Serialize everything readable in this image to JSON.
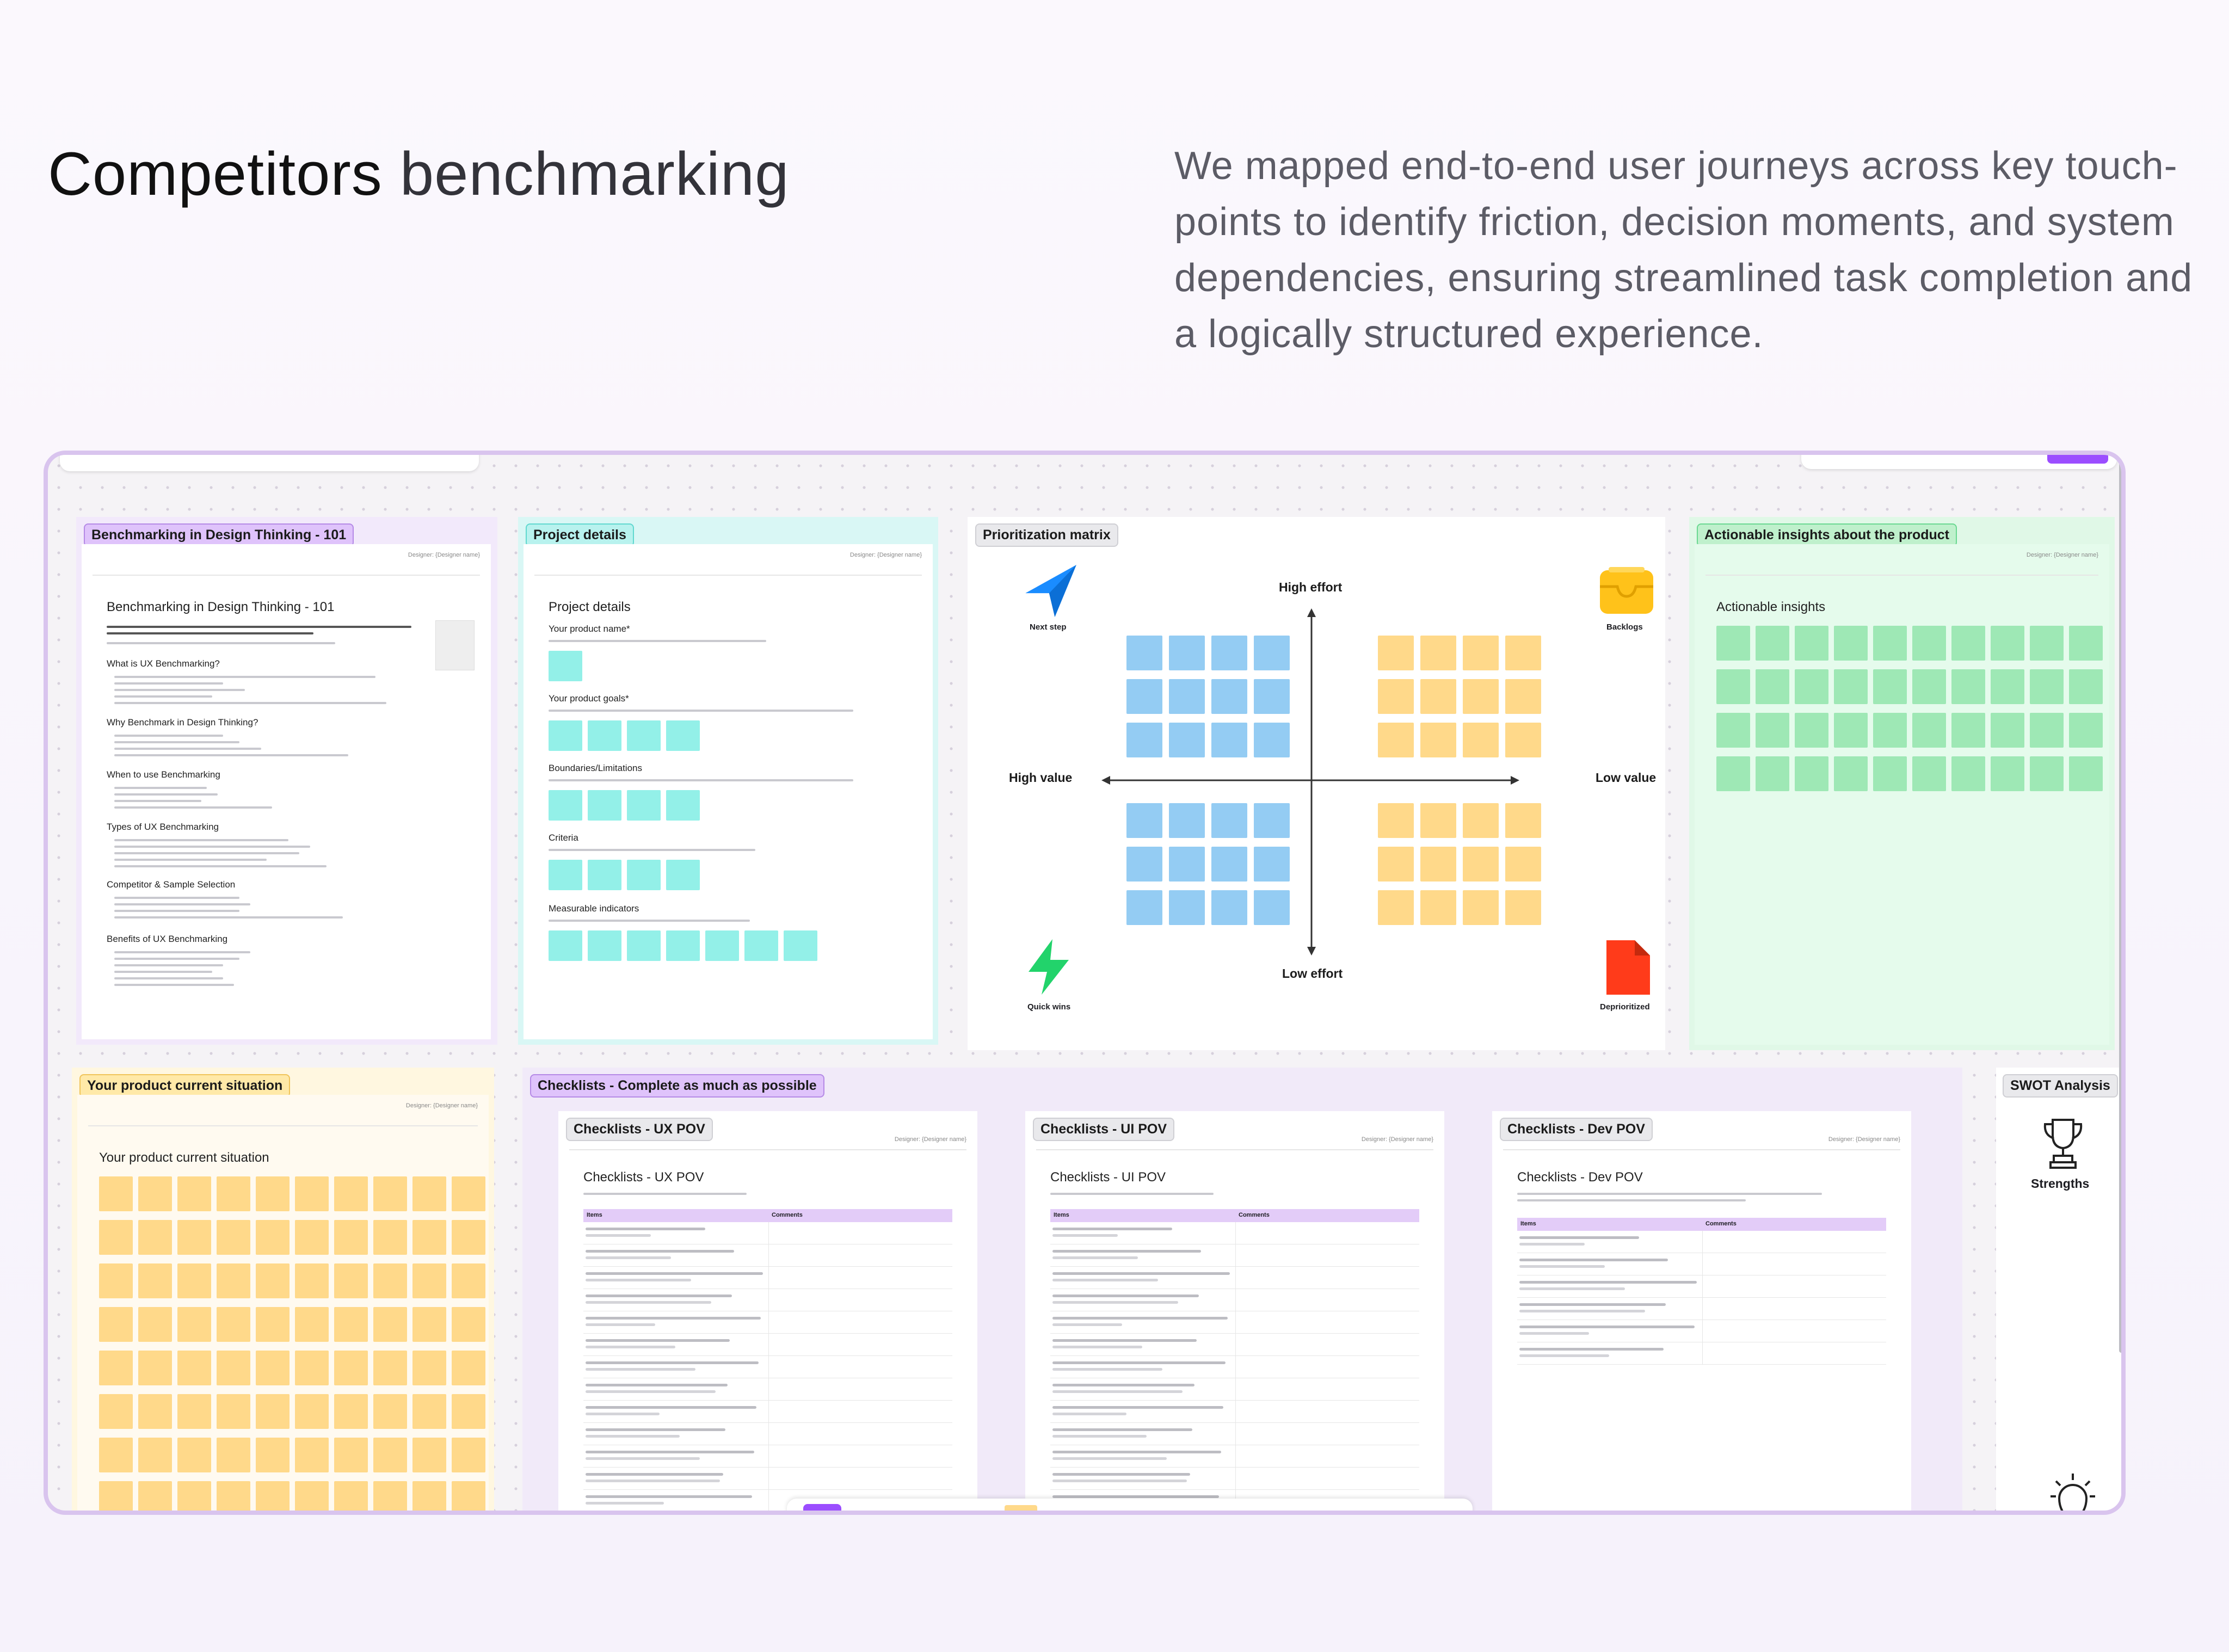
{
  "header": {
    "title_bold": "Competitors",
    "title_light": "benchmarking",
    "description": "We mapped end-to-end user journeys across key touch-points to identify friction, decision moments, and system dependencies, ensuring streamlined task completion and a logically structured experience."
  },
  "board": {
    "frames": {
      "benchmarking": {
        "tag": "Benchmarking in Design Thinking - 101",
        "doc_title": "Benchmarking in Design Thinking - 101",
        "designer": "Designer: {Designer name}",
        "sections": [
          "What is UX Benchmarking?",
          "Why Benchmark in Design Thinking?",
          "When to use Benchmarking",
          "Types of UX Benchmarking",
          "Competitor & Sample Selection",
          "Benefits of UX Benchmarking"
        ]
      },
      "project_details": {
        "tag": "Project details",
        "doc_title": "Project details",
        "designer": "Designer: {Designer name}",
        "sections": [
          "Your product name*",
          "Your product goals*",
          "Boundaries/Limitations",
          "Criteria",
          "Measurable indicators"
        ]
      },
      "prioritization": {
        "tag": "Prioritization matrix",
        "axis_top": "High effort",
        "axis_bottom": "Low effort",
        "axis_left": "High value",
        "axis_right": "Low value",
        "corner_tl": "Next step",
        "corner_tr": "Backlogs",
        "corner_bl": "Quick wins",
        "corner_br": "Deprioritized",
        "colors": {
          "next_step": "#1a8cff",
          "backlogs": "#ffc21a",
          "quick_wins": "#22d36b",
          "deprioritized": "#ff3b1a"
        }
      },
      "insights": {
        "tag": "Actionable insights about the product",
        "doc_title": "Actionable insights",
        "designer": "Designer: {Designer name}"
      },
      "situation": {
        "tag": "Your product current situation",
        "doc_title": "Your product current situation",
        "designer": "Designer: {Designer name}"
      },
      "checklists": {
        "tag": "Checklists - Complete as much as possible",
        "items": [
          {
            "tag": "Checklists - UX POV",
            "doc_title": "Checklists - UX POV",
            "designer": "Designer: {Designer name}",
            "col_items": "Items",
            "col_comments": "Comments"
          },
          {
            "tag": "Checklists - UI POV",
            "doc_title": "Checklists - UI POV",
            "designer": "Designer: {Designer name}",
            "col_items": "Items",
            "col_comments": "Comments"
          },
          {
            "tag": "Checklists - Dev POV",
            "doc_title": "Checklists - Dev POV",
            "designer": "Designer: {Designer name}",
            "col_items": "Items",
            "col_comments": "Comments"
          }
        ]
      },
      "swot": {
        "tag": "SWOT Analysis",
        "strengths": "Strengths"
      }
    }
  }
}
